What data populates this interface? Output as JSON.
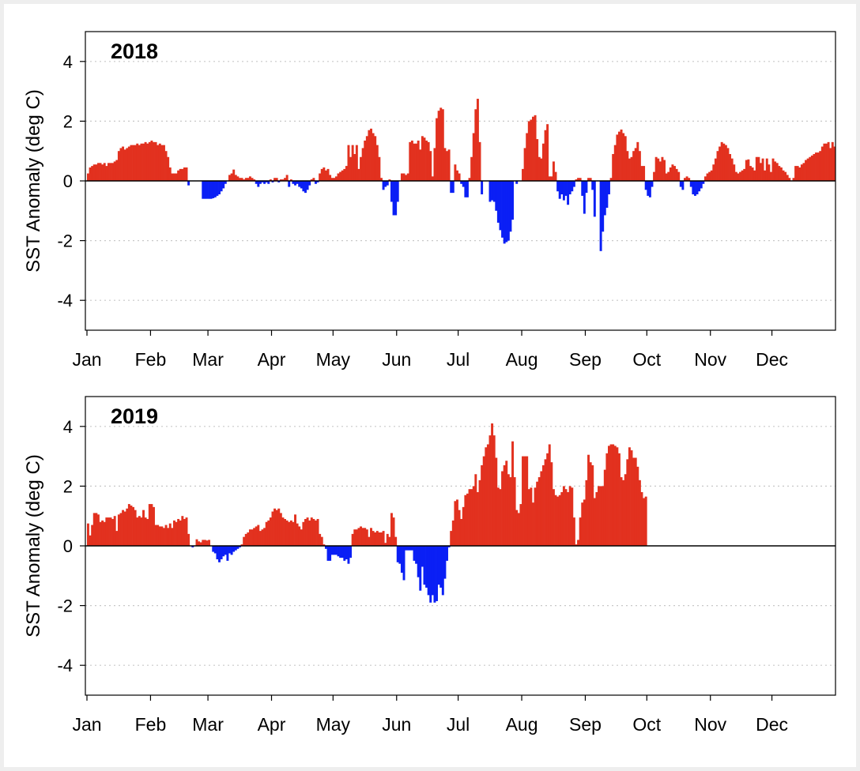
{
  "chart_data": [
    {
      "type": "bar",
      "title": "2018",
      "ylabel": "SST Anomaly (deg C)",
      "xlabel": "",
      "ylim": [
        -5,
        5
      ],
      "yticks": [
        -4,
        -2,
        0,
        2,
        4
      ],
      "ytick_labels": [
        "-4",
        "-2",
        "0",
        "2",
        "4"
      ],
      "xtick_labels": [
        "Jan",
        "Feb",
        "Mar",
        "Apr",
        "May",
        "Jun",
        "Jul",
        "Aug",
        "Sep",
        "Oct",
        "Nov",
        "Dec"
      ],
      "grid": "dotted horizontal at ±2, ±4",
      "positive_color": "#e2311f",
      "negative_color": "#0a1ff5",
      "values": [
        0.25,
        0.45,
        0.5,
        0.55,
        0.55,
        0.6,
        0.6,
        0.55,
        0.6,
        0.5,
        0.6,
        0.6,
        0.6,
        0.65,
        0.7,
        1.0,
        1.1,
        1.15,
        1.05,
        1.1,
        1.15,
        1.2,
        1.2,
        1.2,
        1.25,
        1.2,
        1.25,
        1.25,
        1.3,
        1.25,
        1.3,
        1.35,
        1.3,
        1.3,
        1.2,
        1.25,
        1.2,
        1.2,
        1.0,
        0.8,
        0.45,
        0.25,
        0.25,
        0.25,
        0.35,
        0.4,
        0.4,
        0.45,
        0.45,
        -0.15,
        0,
        0,
        0,
        0,
        0,
        0,
        -0.6,
        -0.6,
        -0.6,
        -0.6,
        -0.6,
        -0.58,
        -0.55,
        -0.5,
        -0.45,
        -0.35,
        -0.25,
        -0.1,
        0,
        0.2,
        0.25,
        0.38,
        0.2,
        0.15,
        0.1,
        0.1,
        0.05,
        0.1,
        0.1,
        0.15,
        0.1,
        0.05,
        -0.1,
        -0.2,
        -0.1,
        -0.05,
        -0.1,
        -0.05,
        -0.1,
        0.05,
        -0.05,
        0.1,
        0.1,
        -0.05,
        0.05,
        0.05,
        0.1,
        0.2,
        -0.2,
        0.05,
        -0.1,
        -0.15,
        -0.1,
        -0.2,
        -0.25,
        -0.35,
        -0.4,
        -0.3,
        -0.15,
        0.05,
        0.1,
        -0.1,
        -0.05,
        0.25,
        0.4,
        0.45,
        0.35,
        0.4,
        0.2,
        0.1,
        0.1,
        0.15,
        0.25,
        0.3,
        0.35,
        0.4,
        0.5,
        1.2,
        0.8,
        1.2,
        0.9,
        1.2,
        0.4,
        0.8,
        1.1,
        1.35,
        1.5,
        1.7,
        1.75,
        1.6,
        1.5,
        1.2,
        0.8,
        0.1,
        -0.3,
        -0.2,
        -0.15,
        0.05,
        -0.7,
        -1.15,
        -1.15,
        -0.7,
        0,
        0.25,
        0.25,
        0.2,
        0.25,
        1.3,
        1.35,
        1.25,
        1.25,
        1.35,
        1.05,
        1.5,
        1.45,
        1.35,
        1.3,
        1.0,
        0.15,
        1.1,
        2.1,
        2.35,
        2.45,
        2.4,
        1.1,
        1.0,
        1.05,
        -0.4,
        -0.4,
        0.55,
        0.35,
        0.25,
        -0.1,
        -0.2,
        -0.55,
        -0.55,
        0.1,
        0.8,
        1.6,
        2.4,
        2.75,
        1.3,
        -0.45,
        0,
        0,
        0,
        -0.7,
        -0.65,
        -0.7,
        -1.0,
        -1.4,
        -1.65,
        -1.9,
        -2.1,
        -2.05,
        -2.0,
        -1.7,
        -1.3,
        0,
        -0.1,
        0,
        0,
        0.4,
        1.1,
        1.6,
        2.0,
        2.05,
        2.15,
        2.2,
        1.4,
        0.8,
        0.75,
        1.25,
        1.7,
        1.9,
        0.15,
        0.15,
        0.65,
        0.3,
        -0.35,
        -0.6,
        -0.45,
        -0.65,
        -0.5,
        -0.8,
        -0.45,
        -0.35,
        -0.2,
        0.05,
        0.1,
        0.1,
        -0.5,
        -1.1,
        -0.4,
        0.1,
        0.1,
        -0.3,
        -1.2,
        0,
        0,
        -2.35,
        -1.7,
        -1.15,
        -0.9,
        -0.45,
        0.1,
        0.9,
        1.2,
        1.55,
        1.65,
        1.72,
        1.6,
        1.5,
        1.0,
        0.75,
        0.8,
        1.0,
        1.1,
        1.3,
        1.0,
        0.5,
        0.5,
        -0.3,
        -0.5,
        -0.55,
        -0.2,
        0.3,
        0.8,
        0.75,
        0.65,
        0.8,
        0.7,
        0.25,
        0.3,
        0.45,
        0.55,
        0.5,
        0.4,
        0.3,
        -0.2,
        -0.3,
        0.1,
        0.15,
        0.1,
        -0.2,
        -0.45,
        -0.5,
        -0.45,
        -0.35,
        -0.25,
        -0.1,
        0.15,
        0.25,
        0.3,
        0.35,
        0.55,
        0.75,
        1.0,
        1.15,
        1.3,
        1.25,
        1.2,
        1.1,
        0.9,
        0.75,
        0.55,
        0.3,
        0.25,
        0.3,
        0.35,
        0.4,
        0.7,
        0.72,
        0.5,
        0.45,
        0.35,
        0.8,
        0.8,
        0.6,
        0.75,
        0.35,
        0.75,
        0.55,
        0.3,
        0.75,
        0.65,
        0.6,
        0.5,
        0.45,
        0.35,
        0.3,
        0.2,
        0.1,
        0,
        0.1,
        0.5,
        0.5,
        0.45,
        0.55,
        0.6,
        0.7,
        0.75,
        0.8,
        0.85,
        0.9,
        0.95,
        0.95,
        1.0,
        1.15,
        1.25,
        1.25,
        1.3,
        1.1,
        1.3,
        1.15
      ]
    },
    {
      "type": "bar",
      "title": "2019",
      "ylabel": "SST Anomaly (deg C)",
      "xlabel": "",
      "ylim": [
        -5,
        5
      ],
      "yticks": [
        -4,
        -2,
        0,
        2,
        4
      ],
      "ytick_labels": [
        "-4",
        "-2",
        "0",
        "2",
        "4"
      ],
      "xtick_labels": [
        "Jan",
        "Feb",
        "Mar",
        "Apr",
        "May",
        "Jun",
        "Jul",
        "Aug",
        "Sep",
        "Oct",
        "Nov",
        "Dec"
      ],
      "grid": "dotted horizontal at ±2, ±4",
      "positive_color": "#e2311f",
      "negative_color": "#0a1ff5",
      "values": [
        0.75,
        0.35,
        0.7,
        1.1,
        1.1,
        1.05,
        0.8,
        0.85,
        0.8,
        0.95,
        0.95,
        0.95,
        0.9,
        1.0,
        0.5,
        1.05,
        1.1,
        1.2,
        1.15,
        1.25,
        1.4,
        1.35,
        1.3,
        1.2,
        0.95,
        1.0,
        0.95,
        1.2,
        0.95,
        0.9,
        1.4,
        1.4,
        1.3,
        0.7,
        0.7,
        0.65,
        0.65,
        0.6,
        0.7,
        0.6,
        0.75,
        0.6,
        0.85,
        0.8,
        0.9,
        0.85,
        1.0,
        0.9,
        0.95,
        0.4,
        0,
        -0.05,
        0,
        0.22,
        0.15,
        0.12,
        0.2,
        0.2,
        0.18,
        0.2,
        0,
        -0.2,
        -0.25,
        -0.45,
        -0.55,
        -0.45,
        -0.35,
        -0.3,
        -0.5,
        -0.25,
        -0.3,
        -0.2,
        -0.15,
        -0.1,
        -0.05,
        0.05,
        0.3,
        0.4,
        0.45,
        0.55,
        0.55,
        0.6,
        0.65,
        0.7,
        0.5,
        0.55,
        0.6,
        0.8,
        0.85,
        0.95,
        1.15,
        1.25,
        1.2,
        1.25,
        1.1,
        0.95,
        0.9,
        0.85,
        0.8,
        0.85,
        0.8,
        1.05,
        0.75,
        0.65,
        0.55,
        0.8,
        0.9,
        0.95,
        0.85,
        0.95,
        0.9,
        0.85,
        0.9,
        0.4,
        0.3,
        0.05,
        -0.1,
        -0.5,
        -0.5,
        -0.3,
        -0.3,
        -0.3,
        -0.35,
        -0.4,
        -0.4,
        -0.5,
        -0.45,
        -0.6,
        -0.4,
        0.4,
        0.55,
        0.55,
        0.6,
        0.65,
        0.6,
        0.6,
        0.55,
        0.3,
        0.6,
        0.5,
        0.45,
        0.5,
        0.45,
        0.45,
        0.5,
        0.1,
        0.4,
        0.3,
        1.1,
        0.95,
        0.3,
        -0.55,
        -0.6,
        -0.9,
        -1.15,
        -0.15,
        -0.15,
        -0.15,
        -0.15,
        -0.5,
        -0.6,
        -1.05,
        -1.5,
        -0.7,
        -1.3,
        -1.4,
        -1.65,
        -1.9,
        -1.65,
        -1.9,
        -1.85,
        -1.3,
        -1.4,
        -1.65,
        -1.1,
        -0.5,
        -0.05,
        0.5,
        0.85,
        1.5,
        1.55,
        1.2,
        0.9,
        1.3,
        1.7,
        1.75,
        1.9,
        1.9,
        2.0,
        2.4,
        1.8,
        2.2,
        2.7,
        3.0,
        3.3,
        3.4,
        3.7,
        4.1,
        3.7,
        2.95,
        1.95,
        1.9,
        2.5,
        2.7,
        2.85,
        2.4,
        2.3,
        3.5,
        2.3,
        1.2,
        1.1,
        1.4,
        3.0,
        3.0,
        3.0,
        1.9,
        1.95,
        1.45,
        1.95,
        2.15,
        2.3,
        2.5,
        2.7,
        2.9,
        3.1,
        3.4,
        2.8,
        1.9,
        1.7,
        1.65,
        1.7,
        1.8,
        2.0,
        1.9,
        1.8,
        2.0,
        1.95,
        0.95,
        0.05,
        0.2,
        0.95,
        1.45,
        1.55,
        2.2,
        3.05,
        2.8,
        2.7,
        1.6,
        1.8,
        2.0,
        2.0,
        2.0,
        2.55,
        3.1,
        3.35,
        3.4,
        3.4,
        3.35,
        3.3,
        3.1,
        2.3,
        2.2,
        2.4,
        2.9,
        3.3,
        3.2,
        2.95,
        2.95,
        2.65,
        2.2,
        1.8,
        1.6,
        1.65
      ]
    }
  ]
}
